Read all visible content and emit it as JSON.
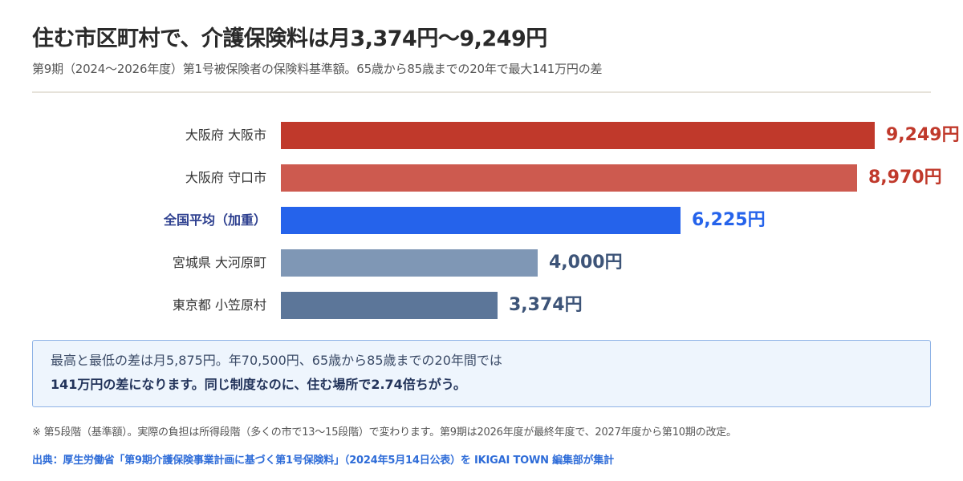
{
  "header": {
    "title": "住む市区町村で、介護保険料は月3,374円〜9,249円",
    "subtitle": "第9期（2024〜2026年度）第1号被保険者の保険料基準額。65歳から85歳までの20年で最大141万円の差"
  },
  "chart_data": {
    "type": "bar",
    "orientation": "horizontal",
    "categories": [
      "大阪府 大阪市",
      "大阪府 守口市",
      "全国平均（加重）",
      "宮城県 大河原町",
      "東京都 小笠原村"
    ],
    "values": [
      9249,
      8970,
      6225,
      4000,
      3374
    ],
    "value_labels": [
      "9,249円",
      "8,970円",
      "6,225円",
      "4,000円",
      "3,374円"
    ],
    "highlight_category": "全国平均（加重）",
    "bar_colors": [
      "#c0392b",
      "#cd5a4f",
      "#2563eb",
      "#7f97b5",
      "#5c7699"
    ],
    "value_colors": [
      "#c0392b",
      "#c0392b",
      "#2563eb",
      "#3d5478",
      "#3d5478"
    ],
    "xlim": [
      0,
      9249
    ],
    "grid": false,
    "legend": "none"
  },
  "note": {
    "line1": "最高と最低の差は月5,875円。年70,500円、65歳から85歳までの20年間では",
    "line2": "141万円の差になります。同じ制度なのに、住む場所で2.74倍ちがう。"
  },
  "footnote": "※ 第5段階（基準額）。実際の負担は所得段階（多くの市で13〜15段階）で変わります。第9期は2026年度が最終年度で、2027年度から第10期の改定。",
  "source": "出典：厚生労働省「第9期介護保険事業計画に基づく第1号保険料」（2024年5月14日公表）を IKIGAI TOWN 編集部が集計"
}
